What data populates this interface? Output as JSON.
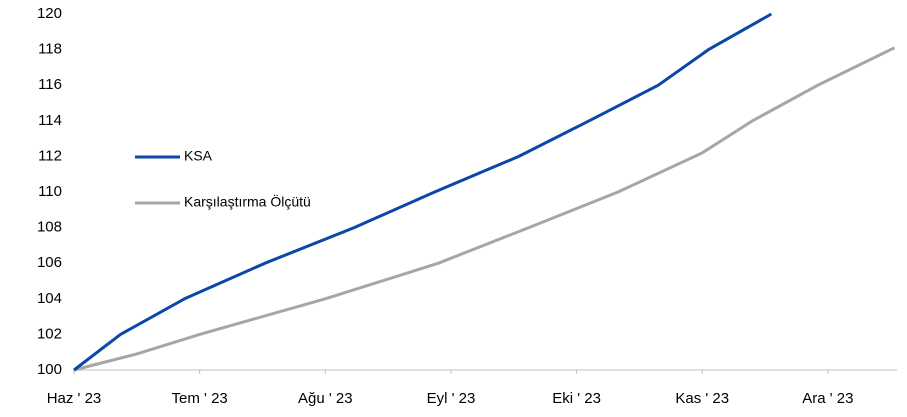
{
  "chart_data": {
    "type": "line",
    "x": [
      0,
      0.37,
      0.88,
      1.52,
      2.23,
      2.87,
      3.54,
      4.1,
      4.65,
      5.05,
      5.55
    ],
    "series": [
      {
        "name": "KSA",
        "color": "#0b47a8",
        "values": [
          100,
          102,
          104,
          106,
          108,
          110,
          112,
          114,
          116,
          118,
          120
        ]
      }
    ],
    "x2": [
      0,
      0.5,
      1,
      2,
      2.9,
      3.62,
      4.33,
      5,
      5.4,
      5.92,
      6.5,
      6.53
    ],
    "series2": [
      {
        "name": "Karşılaştırma Ölçütü",
        "color": "#a6a6a6",
        "values": [
          100,
          100.9,
          102,
          104,
          106,
          108,
          110,
          112.2,
          114,
          116,
          118,
          118.1
        ]
      }
    ],
    "xlim": [
      0,
      6.55
    ],
    "xticks": [
      {
        "value": 0,
        "label": "Haz ' 23"
      },
      {
        "value": 1,
        "label": "Tem ' 23"
      },
      {
        "value": 2,
        "label": "Ağu ' 23"
      },
      {
        "value": 3,
        "label": "Eyl ' 23"
      },
      {
        "value": 4,
        "label": "Eki ' 23"
      },
      {
        "value": 5,
        "label": "Kas ' 23"
      },
      {
        "value": 6,
        "label": "Ara ' 23"
      }
    ],
    "ylim": [
      100,
      120
    ],
    "yticks": [
      100,
      102,
      104,
      106,
      108,
      110,
      112,
      114,
      116,
      118,
      120
    ],
    "grid": false
  }
}
